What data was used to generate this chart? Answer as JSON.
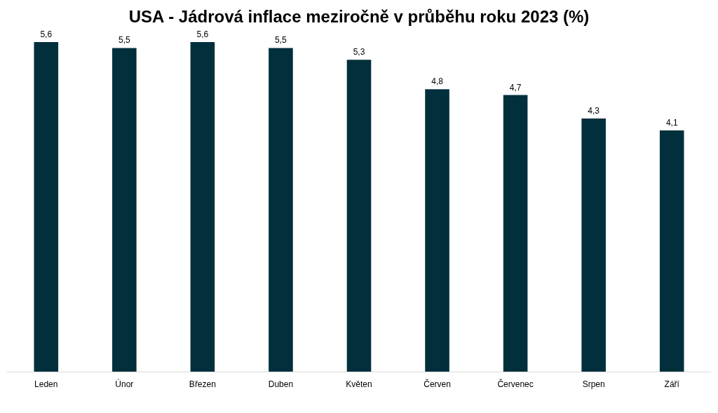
{
  "chart_data": {
    "type": "bar",
    "title": "USA - Jádrová inflace meziročně v průběhu roku 2023 (%)",
    "categories": [
      "Leden",
      "Únor",
      "Březen",
      "Duben",
      "Květen",
      "Červen",
      "Červenec",
      "Srpen",
      "Září"
    ],
    "values": [
      5.6,
      5.5,
      5.6,
      5.5,
      5.3,
      4.8,
      4.7,
      4.3,
      4.1
    ],
    "value_labels": [
      "5,6",
      "5,5",
      "5,6",
      "5,5",
      "5,3",
      "4,8",
      "4,7",
      "4,3",
      "4,1"
    ],
    "color": "#022f3c"
  }
}
